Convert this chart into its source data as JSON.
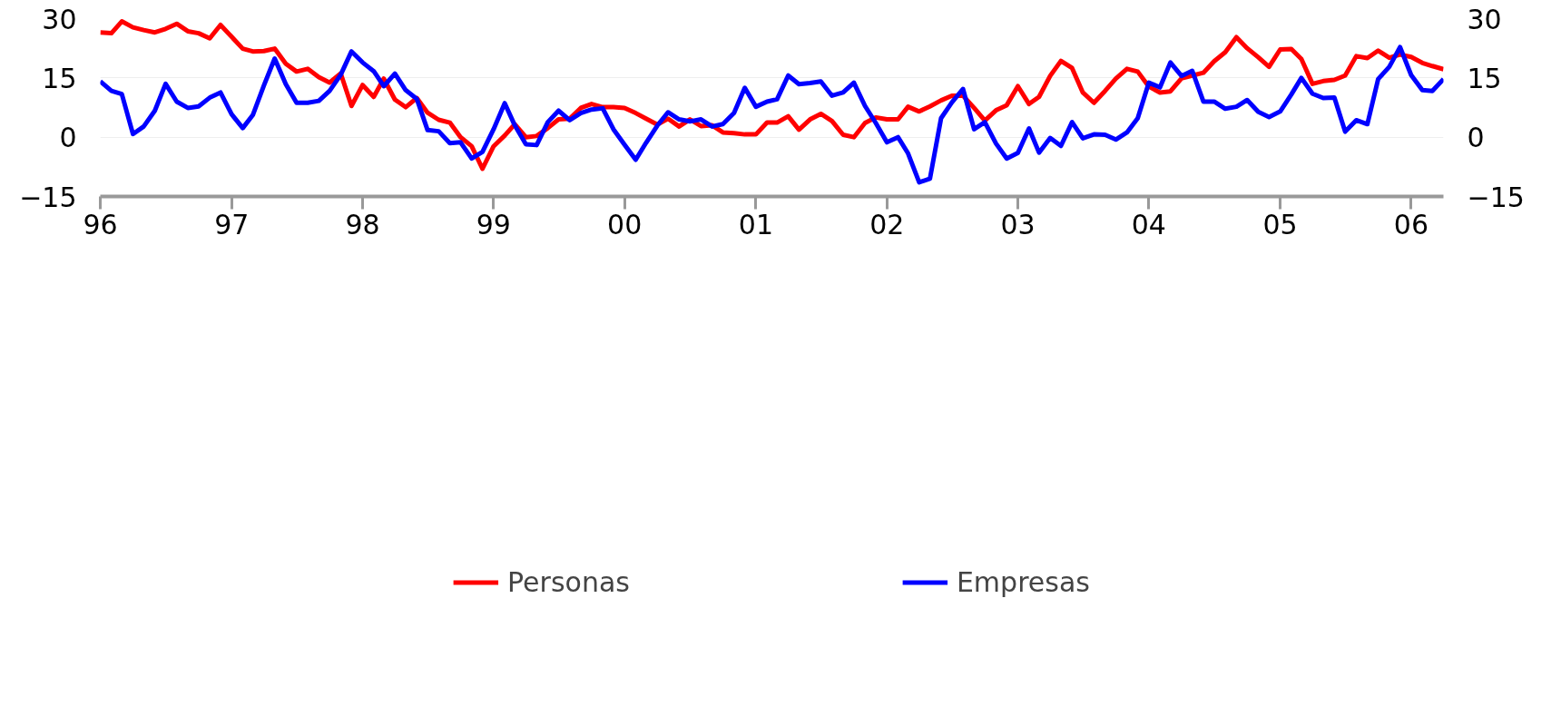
{
  "chart_data": {
    "type": "line",
    "x": [
      "1996-01",
      "1996-02",
      "1996-03",
      "1996-04",
      "1996-05",
      "1996-06",
      "1996-07",
      "1996-08",
      "1996-09",
      "1996-10",
      "1996-11",
      "1996-12",
      "1997-01",
      "1997-02",
      "1997-03",
      "1997-04",
      "1997-05",
      "1997-06",
      "1997-07",
      "1997-08",
      "1997-09",
      "1997-10",
      "1997-11",
      "1997-12",
      "1998-01",
      "1998-02",
      "1998-03",
      "1998-04",
      "1998-05",
      "1998-06",
      "1998-07",
      "1998-08",
      "1998-09",
      "1998-10",
      "1998-11",
      "1998-12",
      "1999-01",
      "1999-02",
      "1999-03",
      "1999-04",
      "1999-05",
      "1999-06",
      "1999-07",
      "1999-08",
      "1999-09",
      "1999-10",
      "1999-11",
      "1999-12",
      "2000-01",
      "2000-02",
      "2000-03",
      "2000-04",
      "2000-05",
      "2000-06",
      "2000-07",
      "2000-08",
      "2000-09",
      "2000-10",
      "2000-11",
      "2000-12",
      "2001-01",
      "2001-02",
      "2001-03",
      "2001-04",
      "2001-05",
      "2001-06",
      "2001-07",
      "2001-08",
      "2001-09",
      "2001-10",
      "2001-11",
      "2001-12",
      "2002-01",
      "2002-02",
      "2002-03",
      "2002-04",
      "2002-05",
      "2002-06",
      "2002-07",
      "2002-08",
      "2002-09",
      "2002-10",
      "2002-11",
      "2002-12",
      "2003-01",
      "2003-02",
      "2003-03",
      "2003-04",
      "2003-05",
      "2003-06",
      "2003-07",
      "2003-08",
      "2003-09",
      "2003-10",
      "2003-11",
      "2003-12",
      "2004-01",
      "2004-02",
      "2004-03",
      "2004-04",
      "2004-05",
      "2004-06",
      "2004-07",
      "2004-08",
      "2004-09",
      "2004-10",
      "2004-11",
      "2004-12",
      "2005-01",
      "2005-02",
      "2005-03",
      "2005-04",
      "2005-05",
      "2005-06",
      "2005-07",
      "2005-08",
      "2005-09",
      "2005-10",
      "2005-11",
      "2005-12",
      "2006-01",
      "2006-02",
      "2006-03",
      "2006-04"
    ],
    "series": [
      {
        "name": "Personas",
        "color": "#ff0000",
        "values": [
          26.5,
          26.3,
          29.3,
          27.8,
          27.1,
          26.5,
          27.4,
          28.7,
          26.8,
          26.3,
          25.0,
          28.4,
          25.4,
          22.4,
          21.7,
          21.8,
          22.4,
          18.6,
          16.6,
          17.3,
          15.2,
          13.8,
          16.1,
          7.9,
          13.2,
          10.2,
          14.8,
          9.5,
          7.6,
          9.9,
          6.2,
          4.4,
          3.7,
          0.0,
          -2.3,
          -8.0,
          -2.3,
          0.4,
          3.3,
          0.0,
          0.3,
          2.3,
          4.5,
          4.7,
          7.4,
          8.4,
          7.6,
          7.6,
          7.4,
          6.1,
          4.7,
          3.2,
          4.7,
          2.7,
          4.5,
          2.8,
          3.0,
          1.2,
          1.0,
          0.7,
          0.7,
          3.7,
          3.7,
          5.3,
          1.9,
          4.5,
          5.9,
          4.1,
          0.6,
          0.0,
          3.6,
          5.0,
          4.5,
          4.5,
          7.7,
          6.5,
          7.8,
          9.3,
          10.5,
          10.5,
          7.4,
          4.2,
          6.8,
          8.1,
          12.9,
          8.4,
          10.2,
          15.5,
          19.3,
          17.5,
          11.3,
          8.7,
          11.7,
          14.8,
          17.3,
          16.6,
          12.8,
          11.3,
          11.6,
          14.9,
          15.6,
          16.3,
          19.2,
          21.5,
          25.3,
          22.5,
          20.2,
          17.8,
          22.2,
          22.3,
          19.8,
          13.5,
          14.2,
          14.5,
          15.6,
          20.5,
          20.0,
          21.9,
          20.1,
          20.9,
          20.3,
          18.8,
          18.0,
          17.2
        ]
      },
      {
        "name": "Empresas",
        "color": "#0000ff",
        "values": [
          14.1,
          11.7,
          10.9,
          0.8,
          2.7,
          6.7,
          13.5,
          9.0,
          7.4,
          7.8,
          10.0,
          11.3,
          5.8,
          2.3,
          5.6,
          13.1,
          19.9,
          13.4,
          8.7,
          8.7,
          9.2,
          11.7,
          15.8,
          21.7,
          18.9,
          16.7,
          12.9,
          16.1,
          11.9,
          9.7,
          1.8,
          1.5,
          -1.5,
          -1.3,
          -5.4,
          -3.7,
          2.0,
          8.6,
          3.0,
          -1.8,
          -2.0,
          3.8,
          6.7,
          4.3,
          6.1,
          7.0,
          7.3,
          2.0,
          -1.9,
          -5.7,
          -1.4,
          2.9,
          6.3,
          4.5,
          4.0,
          4.5,
          2.7,
          3.3,
          6.1,
          12.5,
          7.7,
          9.0,
          9.6,
          15.6,
          13.4,
          13.7,
          14.1,
          10.5,
          11.3,
          13.8,
          7.9,
          3.6,
          -1.3,
          0.0,
          -4.1,
          -11.4,
          -10.5,
          4.8,
          8.8,
          12.2,
          2.0,
          3.8,
          -1.6,
          -5.4,
          -4.0,
          2.2,
          -3.9,
          -0.2,
          -2.2,
          3.8,
          -0.3,
          0.7,
          0.6,
          -0.6,
          1.2,
          4.8,
          13.8,
          12.6,
          18.9,
          15.5,
          16.8,
          9.0,
          9.0,
          7.2,
          7.7,
          9.4,
          6.4,
          5.1,
          6.5,
          10.8,
          15.0,
          11.0,
          9.9,
          10.0,
          1.4,
          4.3,
          3.3,
          14.7,
          17.8,
          22.8,
          15.7,
          11.9,
          11.7,
          14.7
        ]
      }
    ],
    "xlim": [
      "1996-01",
      "2006-04"
    ],
    "xticks": [
      {
        "value": "1996-01",
        "label": "96"
      },
      {
        "value": "1997-01",
        "label": "97"
      },
      {
        "value": "1998-01",
        "label": "98"
      },
      {
        "value": "1999-01",
        "label": "99"
      },
      {
        "value": "2000-01",
        "label": "00"
      },
      {
        "value": "2001-01",
        "label": "01"
      },
      {
        "value": "2002-01",
        "label": "02"
      },
      {
        "value": "2003-01",
        "label": "03"
      },
      {
        "value": "2004-01",
        "label": "04"
      },
      {
        "value": "2005-01",
        "label": "05"
      },
      {
        "value": "2006-01",
        "label": "06"
      }
    ],
    "ylim": [
      -15,
      30
    ],
    "yticks": [
      {
        "value": -15,
        "label": "−15"
      },
      0,
      15,
      30
    ],
    "y2lim": [
      -15,
      30
    ],
    "y2ticks": [
      {
        "value": -15,
        "label": "−15"
      },
      0,
      15,
      30
    ],
    "grid": "y",
    "legend": "bottom",
    "line_style": "solid",
    "marker": "none"
  }
}
